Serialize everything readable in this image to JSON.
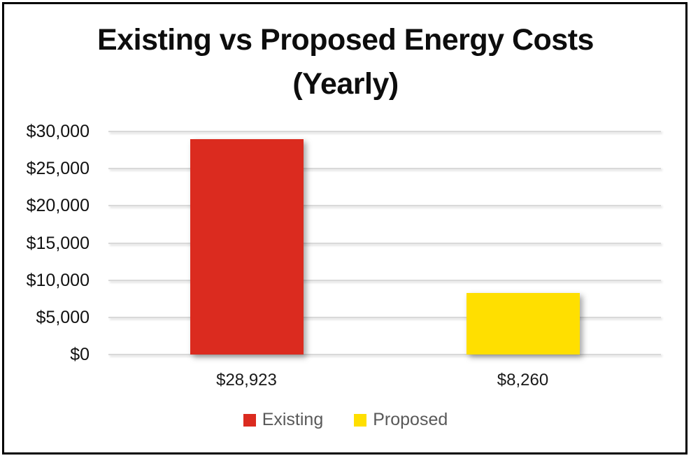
{
  "window": {
    "background_color": "#ffffff",
    "border_color": "#000000"
  },
  "chart_data": {
    "type": "bar",
    "title": "Existing vs Proposed Energy Costs (Yearly)",
    "title_lines": [
      "Existing vs Proposed Energy Costs",
      "(Yearly)"
    ],
    "categories": [
      "$28,923",
      "$8,260"
    ],
    "series": [
      {
        "name": "Existing",
        "value": 28923,
        "value_label": "$28,923",
        "color": "#db2b1f"
      },
      {
        "name": "Proposed",
        "value": 8260,
        "value_label": "$8,260",
        "color": "#ffdf00"
      }
    ],
    "xlabel": "",
    "ylabel": "",
    "ylim": [
      0,
      30000
    ],
    "ytick_step": 5000,
    "ytick_labels": [
      "$0",
      "$5,000",
      "$10,000",
      "$15,000",
      "$20,000",
      "$25,000",
      "$30,000"
    ],
    "grid": true,
    "gridline_color": "#d9d9d9",
    "legend": {
      "position": "bottom",
      "entries": [
        {
          "label": "Existing",
          "color": "#db2b1f"
        },
        {
          "label": "Proposed",
          "color": "#ffdf00"
        }
      ]
    },
    "text_colors": {
      "title": "#0d0d0d",
      "axis_labels": "#111111",
      "category_labels": "#1a1a1a",
      "legend_labels": "#595959"
    }
  }
}
